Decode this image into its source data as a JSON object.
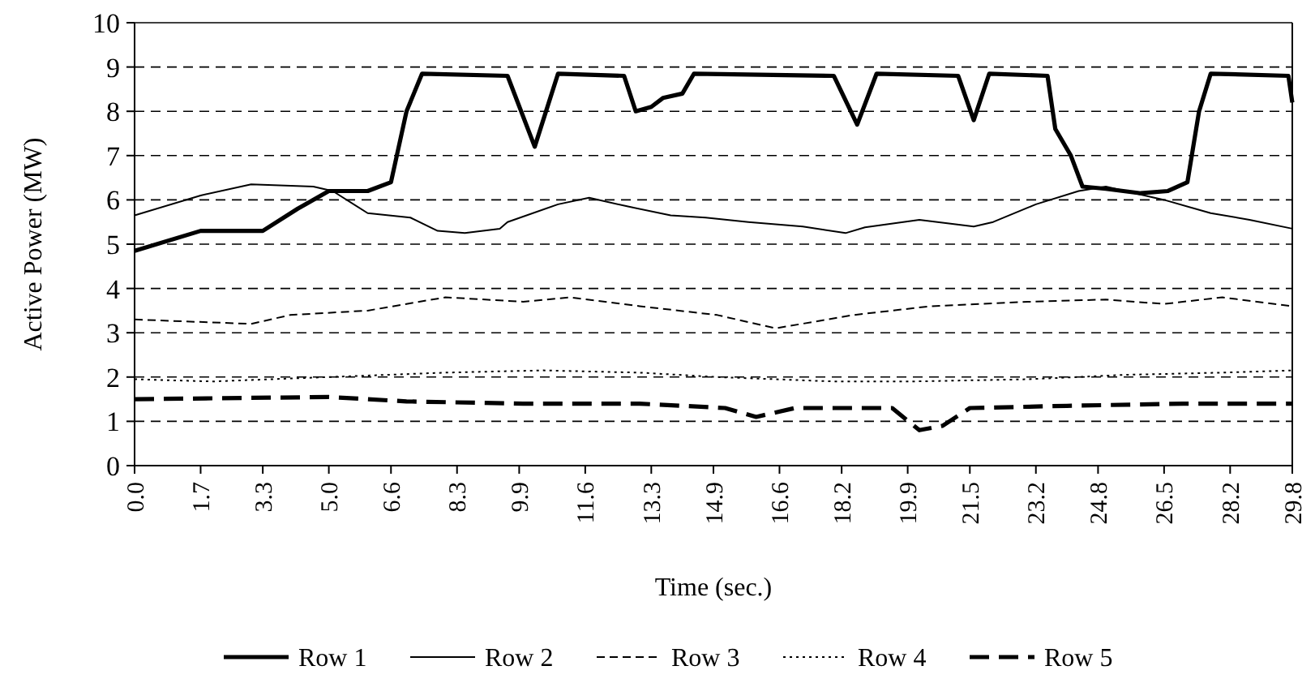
{
  "chart_data": {
    "type": "line",
    "xlabel": "Time (sec.)",
    "ylabel": "Active Power (MW)",
    "xlim": [
      0,
      29.8
    ],
    "xticks": [
      {
        "value": 0,
        "label": "0.0"
      },
      1.7,
      3.3,
      {
        "value": 5,
        "label": "5.0"
      },
      6.6,
      8.3,
      9.9,
      11.6,
      13.3,
      14.9,
      16.6,
      18.2,
      19.9,
      21.5,
      23.2,
      24.8,
      26.5,
      28.2,
      29.8
    ],
    "ylim": [
      0,
      10
    ],
    "yticks": [
      0,
      1,
      2,
      3,
      4,
      5,
      6,
      7,
      8,
      9,
      10
    ],
    "grid": "y",
    "legend": "bottom",
    "marker": "none",
    "series": [
      {
        "name": "Row 1",
        "color": "#000000",
        "line_style": "solid",
        "x": [
          0,
          1.7,
          3.3,
          4.2,
          5.0,
          6.0,
          6.6,
          7.0,
          7.4,
          9.6,
          10.3,
          10.9,
          12.6,
          12.9,
          13.3,
          13.6,
          14.1,
          14.4,
          18.0,
          18.6,
          19.1,
          21.2,
          21.6,
          22.0,
          23.5,
          23.7,
          24.1,
          24.4,
          25.0,
          25.9,
          26.6,
          27.1,
          27.4,
          27.7,
          29.7,
          29.8
        ],
        "values": [
          4.85,
          5.3,
          5.3,
          5.8,
          6.2,
          6.2,
          6.4,
          8.0,
          8.85,
          8.8,
          7.2,
          8.85,
          8.8,
          8.0,
          8.1,
          8.3,
          8.4,
          8.85,
          8.8,
          7.7,
          8.85,
          8.8,
          7.8,
          8.85,
          8.8,
          7.6,
          7.0,
          6.3,
          6.25,
          6.15,
          6.2,
          6.4,
          8.0,
          8.85,
          8.8,
          8.2
        ]
      },
      {
        "name": "Row 2",
        "color": "#000000",
        "line_style": "solid",
        "x": [
          0,
          1.7,
          3.0,
          4.6,
          5.1,
          6.0,
          7.1,
          7.8,
          8.5,
          9.4,
          9.6,
          10.9,
          11.7,
          12.7,
          13.8,
          14.7,
          15.8,
          17.2,
          18.3,
          18.8,
          20.2,
          21.6,
          22.1,
          23.2,
          24.3,
          25.0,
          26.5,
          27.7,
          28.7,
          29.8
        ],
        "values": [
          5.65,
          6.1,
          6.35,
          6.3,
          6.2,
          5.7,
          5.6,
          5.3,
          5.25,
          5.35,
          5.5,
          5.9,
          6.05,
          5.85,
          5.65,
          5.6,
          5.5,
          5.4,
          5.25,
          5.38,
          5.55,
          5.4,
          5.5,
          5.9,
          6.2,
          6.3,
          6.0,
          5.7,
          5.55,
          5.35
        ]
      },
      {
        "name": "Row 3",
        "color": "#000000",
        "line_style": "dashed",
        "x": [
          0,
          3.0,
          4.0,
          6.0,
          8.0,
          10.0,
          11.2,
          13.0,
          15.0,
          16.5,
          18.5,
          20.5,
          23.0,
          25.0,
          26.5,
          28.0,
          29.8
        ],
        "values": [
          3.3,
          3.2,
          3.4,
          3.5,
          3.8,
          3.7,
          3.8,
          3.6,
          3.4,
          3.1,
          3.4,
          3.6,
          3.7,
          3.75,
          3.65,
          3.8,
          3.6
        ]
      },
      {
        "name": "Row 4",
        "color": "#000000",
        "line_style": "dotted",
        "x": [
          0,
          2,
          5,
          8,
          10.5,
          13,
          15,
          18,
          20,
          23,
          25.5,
          28,
          29.8
        ],
        "values": [
          1.95,
          1.9,
          2.0,
          2.1,
          2.15,
          2.1,
          2.0,
          1.9,
          1.9,
          1.95,
          2.05,
          2.1,
          2.15
        ]
      },
      {
        "name": "Row 5",
        "color": "#000000",
        "line_style": "dashed",
        "x": [
          0,
          5,
          7,
          10,
          13,
          15.2,
          16,
          17,
          19.5,
          20.2,
          20.8,
          21.5,
          24,
          27,
          29.8
        ],
        "values": [
          1.5,
          1.55,
          1.45,
          1.4,
          1.4,
          1.3,
          1.1,
          1.3,
          1.3,
          0.8,
          0.9,
          1.3,
          1.35,
          1.4,
          1.4
        ]
      }
    ]
  }
}
